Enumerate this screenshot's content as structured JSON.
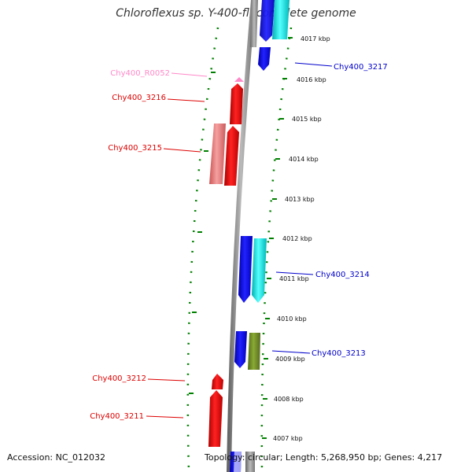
{
  "title": "Chloroflexus sp. Y-400-fl, complete genome",
  "footer": {
    "accession": "Accession: NC_012032",
    "summary": "Topology: circular; Length: 5,268,950 bp; Genes: 4,217"
  },
  "scale": {
    "unit": "kbp",
    "ticks": [
      "4017 kbp",
      "4016 kbp",
      "4015 kbp",
      "4014 kbp",
      "4013 kbp",
      "4012 kbp",
      "4011 kbp",
      "4010 kbp",
      "4009 kbp",
      "4008 kbp",
      "4007 kbp"
    ]
  },
  "labels": [
    {
      "id": "Chy400_3217",
      "text": "Chy400_3217",
      "color": "#0000cc",
      "side": "right"
    },
    {
      "id": "Chy400_R0052",
      "text": "Chy400_R0052",
      "color": "#ff88c8",
      "side": "left"
    },
    {
      "id": "Chy400_3216",
      "text": "Chy400_3216",
      "color": "#dd0000",
      "side": "left"
    },
    {
      "id": "Chy400_3215",
      "text": "Chy400_3215",
      "color": "#dd0000",
      "side": "left"
    },
    {
      "id": "Chy400_3214",
      "text": "Chy400_3214",
      "color": "#0000cc",
      "side": "right"
    },
    {
      "id": "Chy400_3213",
      "text": "Chy400_3213",
      "color": "#0000cc",
      "side": "right"
    },
    {
      "id": "Chy400_3212",
      "text": "Chy400_3212",
      "color": "#dd0000",
      "side": "left"
    },
    {
      "id": "Chy400_3211",
      "text": "Chy400_3211",
      "color": "#dd0000",
      "side": "left"
    }
  ],
  "colors": {
    "forward_cds": "#0000ee",
    "reverse_cds": "#ee0000",
    "cyan_feature": "#00e0e0",
    "olive_feature": "#6b8e23",
    "pale_red_feature": "#e87070",
    "rrna_feature": "#ff88c8",
    "backbone": "#888888",
    "tick_marks": "#008000"
  }
}
